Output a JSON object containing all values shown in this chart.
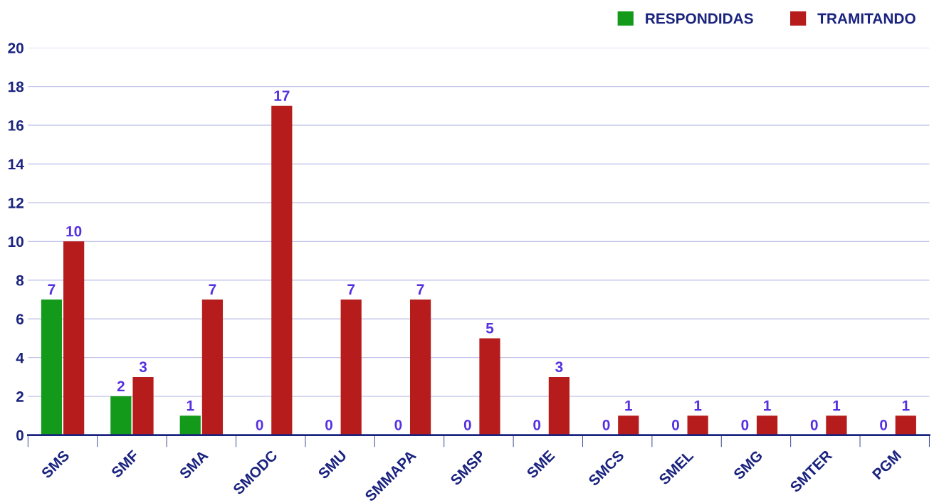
{
  "chart_data": {
    "type": "bar",
    "categories": [
      "SMS",
      "SMF",
      "SMA",
      "SMODC",
      "SMU",
      "SMMAPA",
      "SMSP",
      "SME",
      "SMCS",
      "SMEL",
      "SMG",
      "SMTER",
      "PGM"
    ],
    "series": [
      {
        "name": "RESPONDIDAS",
        "color": "#149a1b",
        "values": [
          7,
          2,
          1,
          0,
          0,
          0,
          0,
          0,
          0,
          0,
          0,
          0,
          0
        ]
      },
      {
        "name": "TRAMITANDO",
        "color": "#b71c1c",
        "values": [
          10,
          3,
          7,
          17,
          7,
          7,
          5,
          3,
          1,
          1,
          1,
          1,
          1
        ]
      }
    ],
    "ylim": [
      0,
      20
    ],
    "yticks": [
      0,
      2,
      4,
      6,
      8,
      10,
      12,
      14,
      16,
      18,
      20
    ],
    "grid": "y",
    "legend": "top right",
    "data_labels": true
  }
}
